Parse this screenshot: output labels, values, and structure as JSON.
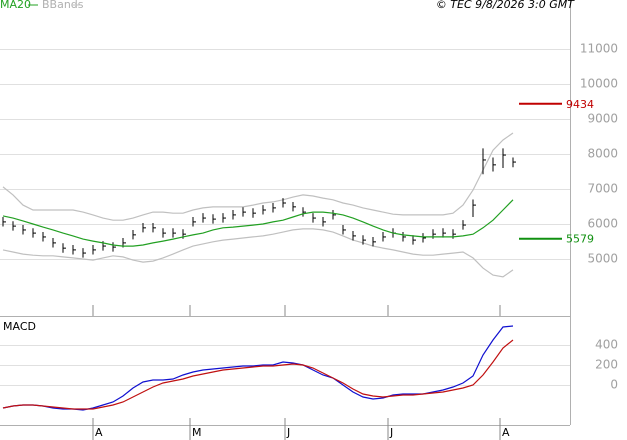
{
  "chart_data": [
    {
      "type": "ohlc",
      "source": "© TEC 9/8/2026 3:0 GMT",
      "color": "#000000",
      "close": [
        6060,
        5940,
        5830,
        5740,
        5630,
        5460,
        5310,
        5260,
        5170,
        5260,
        5370,
        5340,
        5460,
        5690,
        5890,
        5890,
        5740,
        5740,
        5710,
        6060,
        6170,
        6140,
        6170,
        6260,
        6340,
        6310,
        6400,
        6460,
        6600,
        6490,
        6340,
        6170,
        6060,
        6260,
        5830,
        5660,
        5540,
        5490,
        5630,
        5740,
        5630,
        5540,
        5600,
        5710,
        5740,
        5710,
        5970,
        6540,
        7830,
        7690,
        7970,
        7770
      ],
      "high": [
        6200,
        6080,
        5970,
        5880,
        5770,
        5600,
        5450,
        5400,
        5310,
        5400,
        5510,
        5480,
        5600,
        5830,
        6030,
        6030,
        5880,
        5880,
        5850,
        6200,
        6310,
        6280,
        6310,
        6400,
        6480,
        6450,
        6540,
        6600,
        6740,
        6630,
        6480,
        6310,
        6200,
        6400,
        5970,
        5800,
        5680,
        5630,
        5770,
        5880,
        5770,
        5680,
        5740,
        5850,
        5880,
        5850,
        6110,
        6700,
        8160,
        7900,
        8160,
        7900
      ],
      "low": [
        5930,
        5810,
        5700,
        5610,
        5500,
        5330,
        5180,
        5130,
        5040,
        5130,
        5240,
        5210,
        5330,
        5560,
        5760,
        5760,
        5610,
        5610,
        5580,
        5930,
        6040,
        6010,
        6040,
        6130,
        6210,
        6180,
        6270,
        6330,
        6470,
        6360,
        6210,
        6040,
        5930,
        6130,
        5700,
        5530,
        5410,
        5360,
        5500,
        5610,
        5500,
        5410,
        5470,
        5580,
        5610,
        5580,
        5840,
        6200,
        7420,
        7500,
        7600,
        7620
      ],
      "series": [
        {
          "name": "MA20",
          "color": "#22a022",
          "values": [
            6230,
            6170,
            6090,
            6000,
            5910,
            5830,
            5740,
            5660,
            5570,
            5510,
            5460,
            5400,
            5370,
            5370,
            5400,
            5460,
            5510,
            5570,
            5630,
            5690,
            5740,
            5830,
            5890,
            5910,
            5940,
            5970,
            6000,
            6060,
            6110,
            6200,
            6290,
            6340,
            6340,
            6310,
            6260,
            6170,
            6060,
            5940,
            5830,
            5740,
            5690,
            5660,
            5630,
            5630,
            5630,
            5630,
            5660,
            5710,
            5890,
            6110,
            6400,
            6690
          ]
        },
        {
          "name": "BBands",
          "color": "#c0c0c0",
          "upper": [
            7060,
            6830,
            6540,
            6400,
            6400,
            6400,
            6400,
            6400,
            6340,
            6260,
            6170,
            6110,
            6110,
            6170,
            6260,
            6340,
            6340,
            6310,
            6310,
            6400,
            6460,
            6490,
            6490,
            6490,
            6490,
            6540,
            6600,
            6630,
            6690,
            6770,
            6830,
            6800,
            6740,
            6690,
            6600,
            6540,
            6460,
            6400,
            6340,
            6280,
            6260,
            6260,
            6260,
            6260,
            6260,
            6310,
            6540,
            6970,
            7540,
            8110,
            8400,
            8600
          ],
          "lower": [
            5260,
            5200,
            5140,
            5110,
            5090,
            5090,
            5060,
            5030,
            5000,
            4970,
            5030,
            5090,
            5060,
            4970,
            4910,
            4940,
            5030,
            5140,
            5260,
            5370,
            5430,
            5490,
            5540,
            5570,
            5600,
            5630,
            5660,
            5710,
            5770,
            5830,
            5860,
            5860,
            5830,
            5770,
            5660,
            5540,
            5460,
            5370,
            5310,
            5260,
            5200,
            5140,
            5110,
            5110,
            5140,
            5170,
            5200,
            5030,
            4740,
            4540,
            4490,
            4690
          ]
        }
      ],
      "annotations": [
        {
          "value": 9434,
          "color": "#c00000"
        },
        {
          "value": 5579,
          "color": "#109010"
        }
      ],
      "xlim": [
        -0.3,
        56.7
      ],
      "ylim": [
        3400,
        12400
      ],
      "yticks": [
        5000,
        6000,
        7000,
        8000,
        9000,
        10000,
        11000
      ],
      "month_ticks": [
        {
          "value": 9,
          "label": "A"
        },
        {
          "value": 18.7,
          "label": "M"
        },
        {
          "value": 28.2,
          "label": "J"
        },
        {
          "value": 38.5,
          "label": "J"
        },
        {
          "value": 49.7,
          "label": "A"
        }
      ],
      "grid": true
    },
    {
      "type": "line",
      "title": "MACD",
      "series": [
        {
          "color": "#1010d0",
          "values": [
            -230,
            -210,
            -200,
            -200,
            -210,
            -230,
            -240,
            -240,
            -250,
            -230,
            -200,
            -170,
            -110,
            -30,
            30,
            50,
            50,
            60,
            100,
            130,
            150,
            160,
            170,
            180,
            190,
            190,
            200,
            200,
            230,
            220,
            200,
            150,
            100,
            70,
            0,
            -70,
            -120,
            -140,
            -130,
            -100,
            -90,
            -90,
            -90,
            -70,
            -50,
            -20,
            20,
            90,
            300,
            450,
            580,
            590
          ]
        },
        {
          "color": "#c01010",
          "values": [
            -230,
            -210,
            -200,
            -200,
            -210,
            -220,
            -230,
            -240,
            -240,
            -240,
            -220,
            -200,
            -170,
            -120,
            -70,
            -20,
            20,
            40,
            60,
            90,
            110,
            130,
            150,
            160,
            170,
            180,
            190,
            190,
            200,
            210,
            200,
            170,
            120,
            70,
            20,
            -40,
            -90,
            -110,
            -120,
            -110,
            -100,
            -100,
            -90,
            -80,
            -70,
            -50,
            -30,
            0,
            100,
            230,
            370,
            450
          ]
        }
      ],
      "ylim": [
        -400,
        670
      ],
      "yticks": [
        0,
        200,
        400
      ],
      "grid": true
    }
  ]
}
